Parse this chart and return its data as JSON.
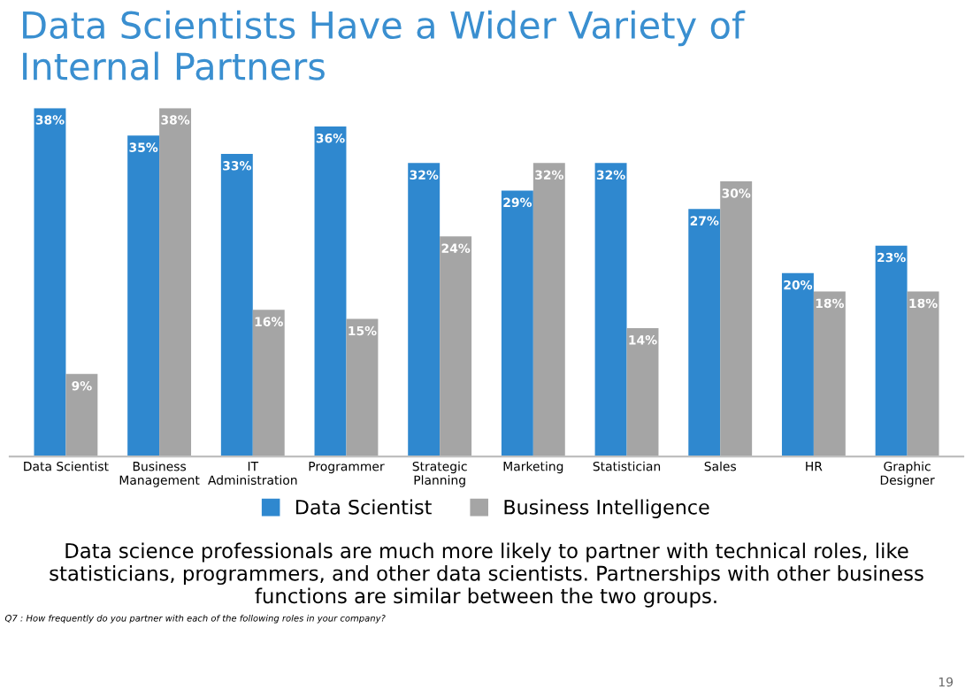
{
  "chart_data": {
    "type": "bar",
    "title": "Data Scientists Have a Wider Variety of\nInternal Partners",
    "categories": [
      "Data Scientist",
      "Business\nManagement",
      "IT\nAdministration",
      "Programmer",
      "Strategic\nPlanning",
      "Marketing",
      "Statistician",
      "Sales",
      "HR",
      "Graphic\nDesigner"
    ],
    "series": [
      {
        "name": "Data Scientist",
        "color": "#2f88cf",
        "values": [
          38,
          35,
          33,
          36,
          32,
          29,
          32,
          27,
          20,
          23
        ],
        "value_labels": [
          "38%",
          "35%",
          "33%",
          "36%",
          "32%",
          "29%",
          "32%",
          "27%",
          "20%",
          "23%"
        ]
      },
      {
        "name": "Business Intelligence",
        "color": "#a5a5a5",
        "values": [
          9,
          38,
          16,
          15,
          24,
          32,
          14,
          30,
          18,
          18
        ],
        "value_labels": [
          "9%",
          "38%",
          "16%",
          "15%",
          "24%",
          "32%",
          "14%",
          "30%",
          "18%",
          "18%"
        ]
      }
    ],
    "legend": "bottom",
    "grid": false,
    "annotations": [
      "Data science professionals are much more likely to partner with technical roles, like statisticians, programmers, and other data scientists. Partnerships with other business functions are similar between the two groups.",
      "Q7 : How frequently do you partner with each of the following roles in your company?",
      "19"
    ]
  }
}
